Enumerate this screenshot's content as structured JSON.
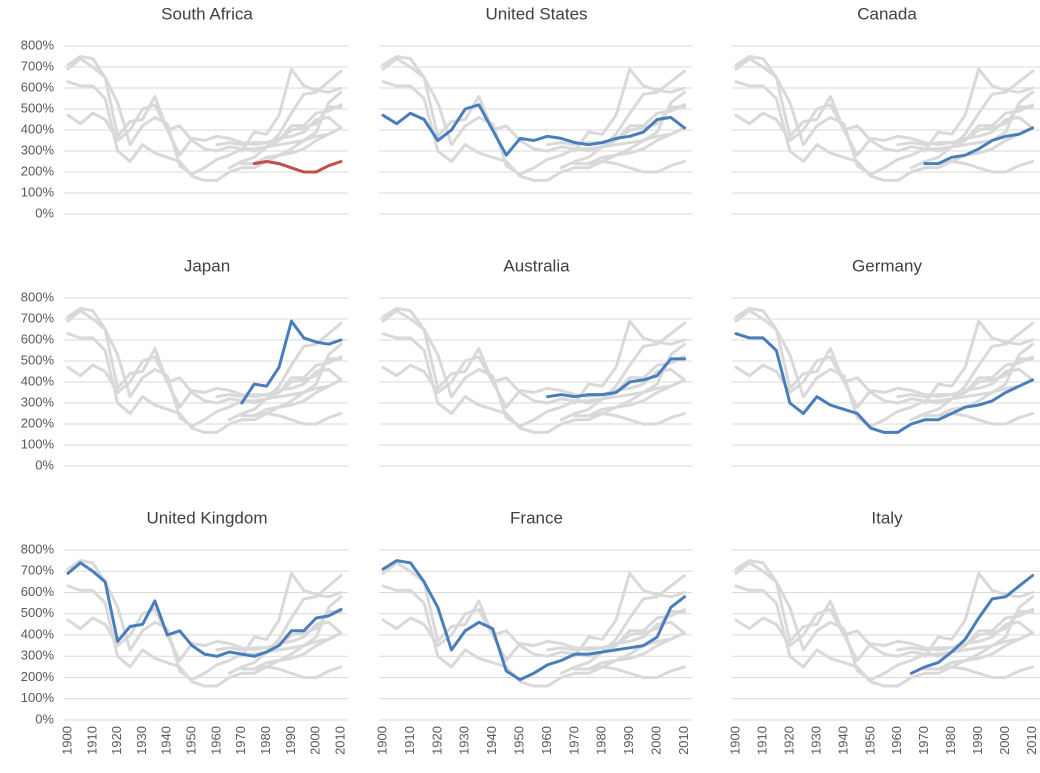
{
  "chart_data": {
    "type": "line",
    "x": [
      1900,
      1905,
      1910,
      1915,
      1920,
      1925,
      1930,
      1935,
      1940,
      1945,
      1950,
      1955,
      1960,
      1965,
      1970,
      1975,
      1980,
      1985,
      1990,
      1995,
      2000,
      2005,
      2010
    ],
    "xlim": [
      1900,
      2012
    ],
    "xticks": [
      1900,
      1910,
      1920,
      1930,
      1940,
      1950,
      1960,
      1970,
      1980,
      1990,
      2000,
      2010
    ],
    "ylim": [
      0,
      800
    ],
    "yticks": [
      {
        "value": 0,
        "label": "0%"
      },
      {
        "value": 100,
        "label": "100%"
      },
      {
        "value": 200,
        "label": "200%"
      },
      {
        "value": 300,
        "label": "300%"
      },
      {
        "value": 400,
        "label": "400%"
      },
      {
        "value": 500,
        "label": "500%"
      },
      {
        "value": 600,
        "label": "600%"
      },
      {
        "value": 700,
        "label": "700%"
      },
      {
        "value": 800,
        "label": "800%"
      }
    ],
    "grid": true,
    "other_color": "#d9d9d9",
    "series": [
      {
        "name": "South Africa",
        "color": "#c0504d",
        "values": [
          null,
          null,
          null,
          null,
          null,
          null,
          null,
          null,
          null,
          null,
          null,
          null,
          null,
          null,
          null,
          240,
          250,
          240,
          220,
          200,
          200,
          230,
          250
        ]
      },
      {
        "name": "United States",
        "color": "#4a7ebb",
        "values": [
          470,
          430,
          480,
          450,
          350,
          400,
          500,
          520,
          400,
          280,
          360,
          350,
          370,
          360,
          340,
          330,
          340,
          360,
          370,
          390,
          450,
          460,
          410
        ]
      },
      {
        "name": "Canada",
        "color": "#4a7ebb",
        "values": [
          null,
          null,
          null,
          null,
          null,
          null,
          null,
          null,
          null,
          null,
          null,
          null,
          null,
          null,
          240,
          240,
          270,
          280,
          310,
          350,
          370,
          380,
          410
        ]
      },
      {
        "name": "Japan",
        "color": "#4a7ebb",
        "values": [
          null,
          null,
          null,
          null,
          null,
          null,
          null,
          null,
          null,
          null,
          null,
          null,
          null,
          null,
          300,
          390,
          380,
          470,
          690,
          610,
          590,
          580,
          600
        ]
      },
      {
        "name": "Australia",
        "color": "#4a7ebb",
        "values": [
          null,
          null,
          null,
          null,
          null,
          null,
          null,
          null,
          null,
          null,
          null,
          null,
          330,
          340,
          330,
          340,
          340,
          350,
          400,
          410,
          430,
          510,
          510
        ]
      },
      {
        "name": "Germany",
        "color": "#4a7ebb",
        "values": [
          630,
          610,
          610,
          550,
          300,
          250,
          330,
          290,
          270,
          250,
          180,
          160,
          160,
          200,
          220,
          220,
          250,
          280,
          290,
          310,
          350,
          380,
          410
        ]
      },
      {
        "name": "United Kingdom",
        "color": "#4a7ebb",
        "values": [
          690,
          740,
          700,
          650,
          370,
          440,
          450,
          560,
          400,
          420,
          350,
          310,
          300,
          320,
          310,
          300,
          320,
          350,
          420,
          420,
          480,
          490,
          520
        ]
      },
      {
        "name": "France",
        "color": "#4a7ebb",
        "values": [
          710,
          750,
          740,
          650,
          530,
          330,
          420,
          460,
          430,
          230,
          190,
          220,
          260,
          280,
          310,
          310,
          320,
          330,
          340,
          350,
          390,
          530,
          580
        ]
      },
      {
        "name": "Italy",
        "color": "#4a7ebb",
        "values": [
          null,
          null,
          null,
          null,
          null,
          null,
          null,
          null,
          null,
          null,
          null,
          null,
          null,
          220,
          250,
          270,
          320,
          380,
          480,
          570,
          580,
          630,
          680
        ]
      }
    ]
  }
}
